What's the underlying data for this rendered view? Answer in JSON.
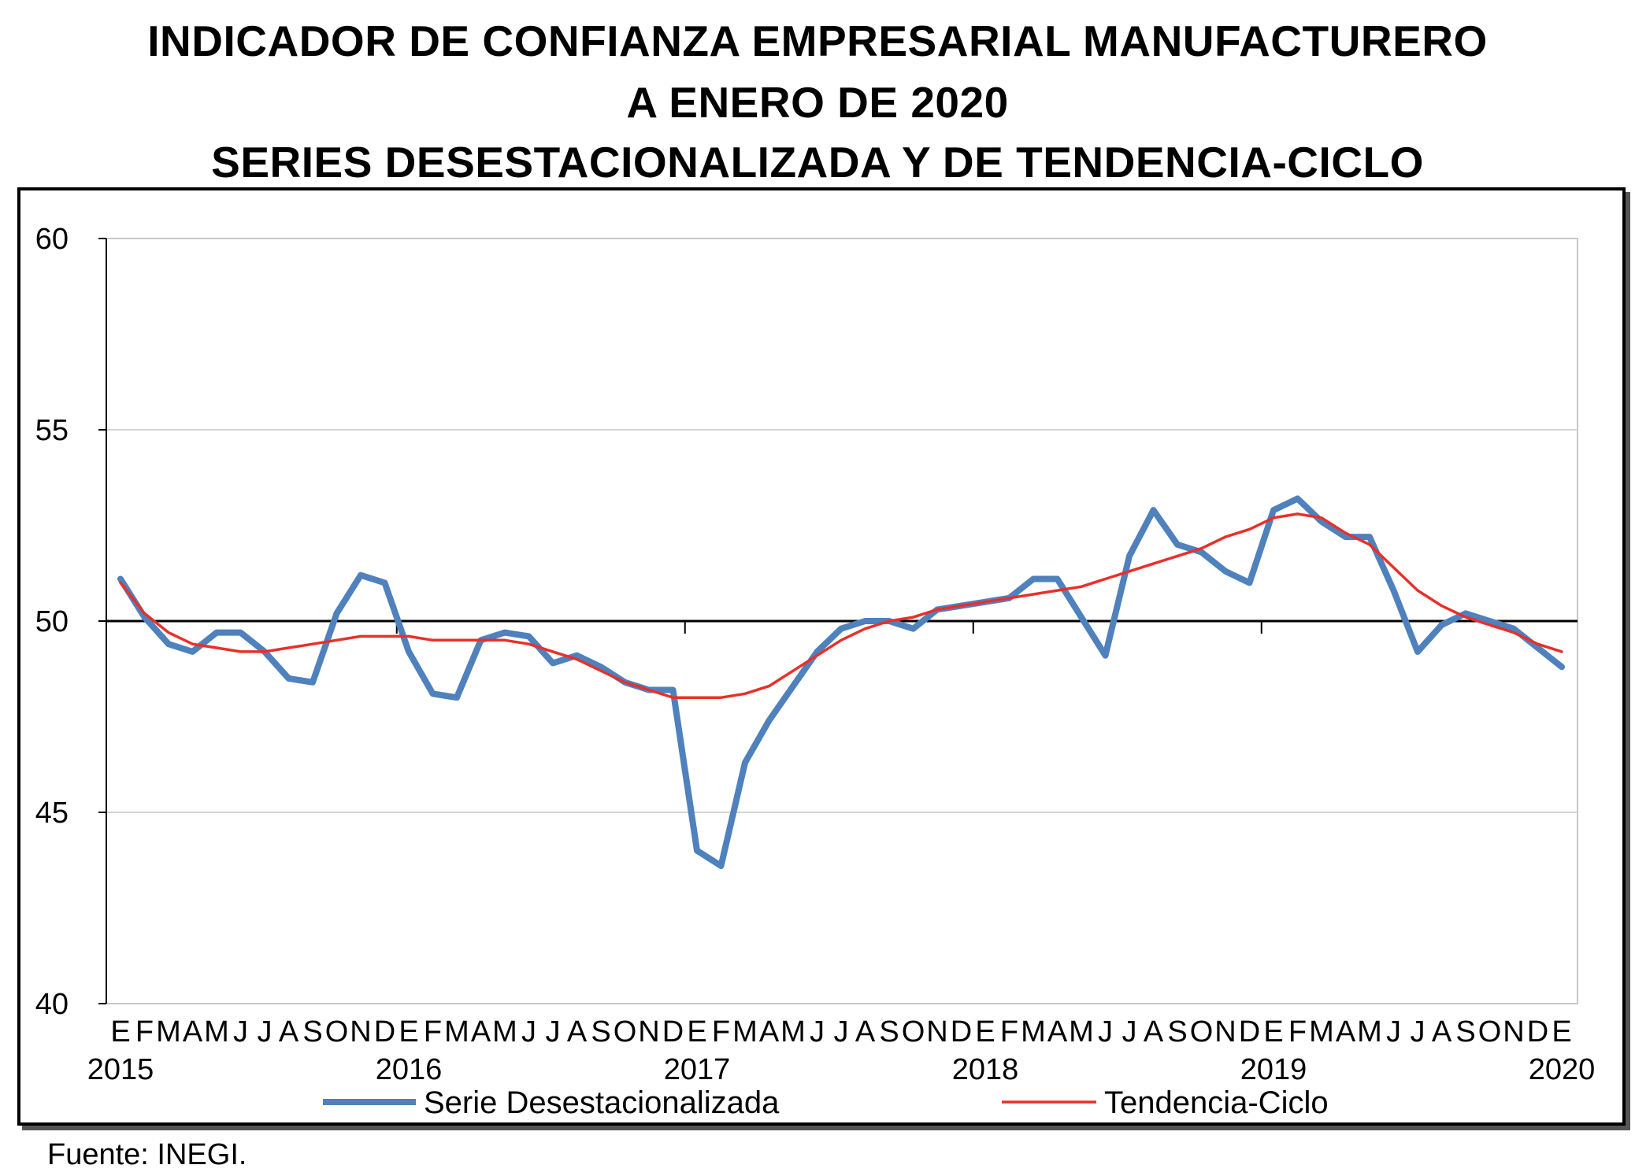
{
  "title": {
    "line1": "INDICADOR DE CONFIANZA EMPRESARIAL MANUFACTURERO",
    "line2": "A ENERO DE 2020",
    "line3": "SERIES DESESTACIONALIZADA Y DE TENDENCIA-CICLO"
  },
  "source": "Fuente: INEGI.",
  "chart_data": {
    "type": "line",
    "title": "Indicador de Confianza Empresarial Manufacturero a enero de 2020",
    "ylim": [
      40,
      60
    ],
    "yticks": [
      "40",
      "45",
      "50",
      "55",
      "60"
    ],
    "reference_line": 50,
    "grid": true,
    "legend_position": "bottom",
    "month_labels": [
      "E",
      "F",
      "M",
      "A",
      "M",
      "J",
      "J",
      "A",
      "S",
      "O",
      "N",
      "D",
      "E",
      "F",
      "M",
      "A",
      "M",
      "J",
      "J",
      "A",
      "S",
      "O",
      "N",
      "D",
      "E",
      "F",
      "M",
      "A",
      "M",
      "J",
      "J",
      "A",
      "S",
      "O",
      "N",
      "D",
      "E",
      "F",
      "M",
      "A",
      "M",
      "J",
      "J",
      "A",
      "S",
      "O",
      "N",
      "D",
      "E",
      "F",
      "M",
      "A",
      "M",
      "J",
      "J",
      "A",
      "S",
      "O",
      "N",
      "D",
      "E"
    ],
    "year_labels": [
      {
        "label": "2015",
        "index": 0
      },
      {
        "label": "2016",
        "index": 12
      },
      {
        "label": "2017",
        "index": 24
      },
      {
        "label": "2018",
        "index": 36
      },
      {
        "label": "2019",
        "index": 48
      },
      {
        "label": "2020",
        "index": 60
      }
    ],
    "series": [
      {
        "name": "Serie Desestacionalizada",
        "color": "#4F81BD",
        "values": [
          51.1,
          50.1,
          49.4,
          49.2,
          49.7,
          49.7,
          49.2,
          48.5,
          48.4,
          50.2,
          51.2,
          51.0,
          49.2,
          48.1,
          48.0,
          49.5,
          49.7,
          49.6,
          48.9,
          49.1,
          48.8,
          48.4,
          48.2,
          48.2,
          44.0,
          43.6,
          46.3,
          47.4,
          48.3,
          49.2,
          49.8,
          50.0,
          50.0,
          49.8,
          50.3,
          50.4,
          50.5,
          50.6,
          51.1,
          51.1,
          50.1,
          49.1,
          51.7,
          52.9,
          52.0,
          51.8,
          51.3,
          51.0,
          52.9,
          53.2,
          52.6,
          52.2,
          52.2,
          50.8,
          49.2,
          49.9,
          50.2,
          50.0,
          49.8,
          49.3,
          48.8
        ]
      },
      {
        "name": "Tendencia-Ciclo",
        "color": "#E8302A",
        "values": [
          51.0,
          50.2,
          49.7,
          49.4,
          49.3,
          49.2,
          49.2,
          49.3,
          49.4,
          49.5,
          49.6,
          49.6,
          49.6,
          49.5,
          49.5,
          49.5,
          49.5,
          49.4,
          49.2,
          49.0,
          48.7,
          48.4,
          48.2,
          48.0,
          48.0,
          48.0,
          48.1,
          48.3,
          48.7,
          49.1,
          49.5,
          49.8,
          50.0,
          50.1,
          50.3,
          50.4,
          50.5,
          50.6,
          50.7,
          50.8,
          50.9,
          51.1,
          51.3,
          51.5,
          51.7,
          51.9,
          52.2,
          52.4,
          52.7,
          52.8,
          52.7,
          52.3,
          52.0,
          51.4,
          50.8,
          50.4,
          50.1,
          49.9,
          49.7,
          49.4,
          49.2
        ]
      }
    ]
  }
}
